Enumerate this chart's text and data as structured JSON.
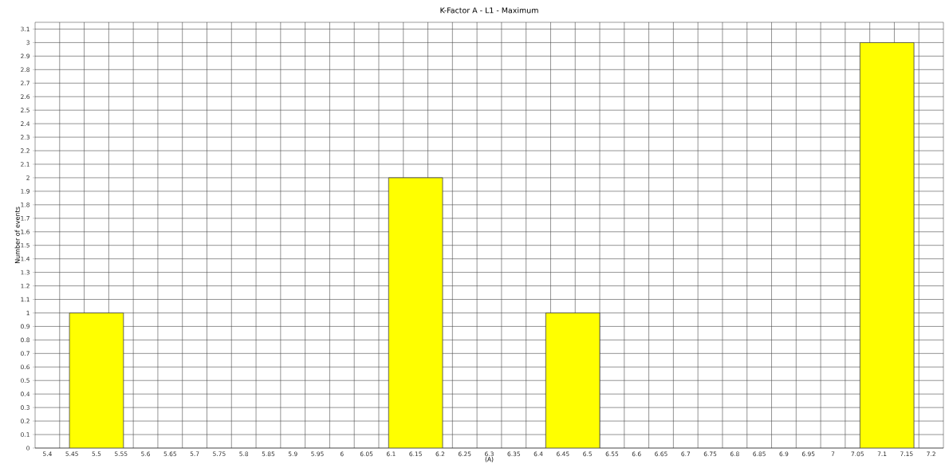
{
  "chart_data": {
    "type": "bar",
    "title": "K-Factor A  -  L1  -  Maximum",
    "xlabel": "(A)",
    "ylabel": "Number of events",
    "x": [
      5.5,
      6.15,
      6.47,
      7.11
    ],
    "values": [
      1,
      2,
      1,
      3
    ],
    "color": "#ffff00",
    "xlim": [
      5.375,
      7.225
    ],
    "xticks": [
      5.4,
      5.45,
      5.5,
      5.55,
      5.6,
      5.65,
      5.7,
      5.75,
      5.8,
      5.85,
      5.9,
      5.95,
      6,
      6.05,
      6.1,
      6.15,
      6.2,
      6.25,
      6.3,
      6.35,
      6.4,
      6.45,
      6.5,
      6.55,
      6.6,
      6.65,
      6.7,
      6.75,
      6.8,
      6.85,
      6.9,
      6.95,
      7,
      7.05,
      7.1,
      7.15,
      7.2
    ],
    "ylim": [
      0,
      3.15
    ],
    "yticks": [
      0,
      0.1,
      0.2,
      0.3,
      0.4,
      0.5,
      0.6,
      0.7,
      0.8,
      0.9,
      1,
      1.1,
      1.2,
      1.3,
      1.4,
      1.5,
      1.6,
      1.7,
      1.8,
      1.9,
      2,
      2.1,
      2.2,
      2.3,
      2.4,
      2.5,
      2.6,
      2.7,
      2.8,
      2.9,
      3,
      3.1
    ],
    "grid": true
  }
}
